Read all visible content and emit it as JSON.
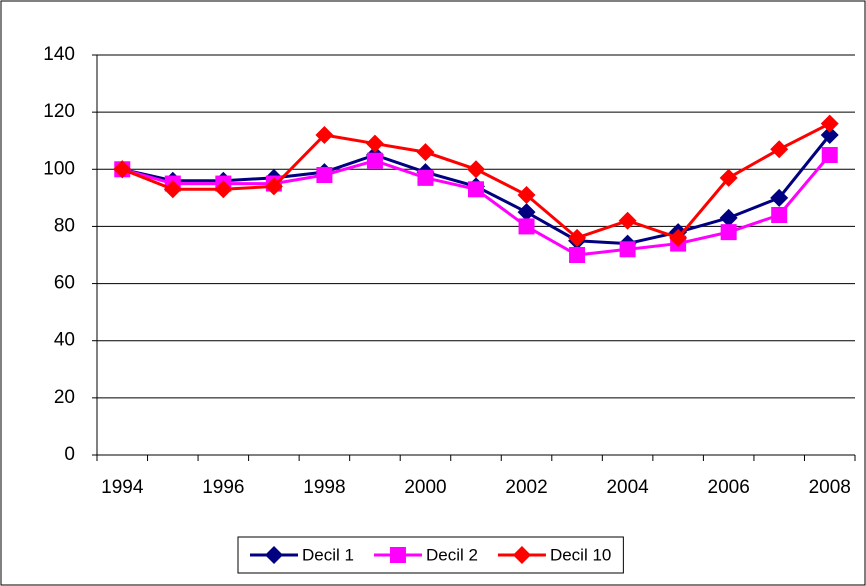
{
  "chart_data": {
    "type": "line",
    "categories": [
      "1994",
      null,
      "1996",
      null,
      "1998",
      null,
      "2000",
      null,
      "2002",
      null,
      "2004",
      null,
      "2006",
      null,
      "2008"
    ],
    "series": [
      {
        "name": "Decil 1",
        "color": "#000080",
        "marker": "diamond",
        "values": [
          100,
          96,
          96,
          97,
          99,
          105,
          99,
          94,
          85,
          75,
          74,
          78,
          83,
          90,
          112
        ]
      },
      {
        "name": "Decil 2",
        "color": "#ff00ff",
        "marker": "square",
        "values": [
          100,
          95,
          95,
          95,
          98,
          103,
          97,
          93,
          80,
          70,
          72,
          74,
          78,
          84,
          105
        ]
      },
      {
        "name": "Decil 10",
        "color": "#ff0000",
        "marker": "diamond",
        "values": [
          100,
          93,
          93,
          94,
          112,
          109,
          106,
          100,
          91,
          76,
          82,
          76,
          97,
          107,
          116
        ]
      }
    ],
    "ylim": [
      0,
      140
    ],
    "yticks": [
      0,
      20,
      40,
      60,
      80,
      100,
      120,
      140
    ],
    "grid": true,
    "legend": "bottom"
  }
}
